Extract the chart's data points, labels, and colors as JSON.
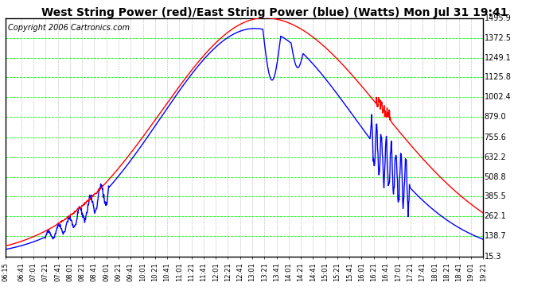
{
  "title": "West String Power (red)/East String Power (blue) (Watts) Mon Jul 31 19:41",
  "copyright": "Copyright 2006 Cartronics.com",
  "outer_bg": "#ffffff",
  "plot_bg": "#ffffff",
  "y_ticks": [
    15.3,
    138.7,
    262.1,
    385.5,
    508.8,
    632.2,
    755.6,
    879.0,
    1002.4,
    1125.8,
    1249.1,
    1372.5,
    1495.9
  ],
  "x_labels": [
    "06:15",
    "06:41",
    "07:01",
    "07:21",
    "07:41",
    "08:01",
    "08:21",
    "08:41",
    "09:01",
    "09:21",
    "09:41",
    "10:01",
    "10:21",
    "10:41",
    "11:01",
    "11:21",
    "11:41",
    "12:01",
    "12:21",
    "12:41",
    "13:01",
    "13:21",
    "13:41",
    "14:01",
    "14:21",
    "14:41",
    "15:01",
    "15:21",
    "15:41",
    "16:01",
    "16:21",
    "16:41",
    "17:01",
    "17:21",
    "17:41",
    "18:01",
    "18:21",
    "18:41",
    "19:01",
    "19:21"
  ],
  "ymin": 15.3,
  "ymax": 1495.9,
  "red_color": "#ff0000",
  "blue_color": "#0000ff",
  "hgrid_color": "#00ff00",
  "vgrid_color": "#888888",
  "border_color": "#000000",
  "title_fontsize": 10,
  "copyright_fontsize": 7,
  "tick_fontsize": 7,
  "linewidth": 1.0
}
